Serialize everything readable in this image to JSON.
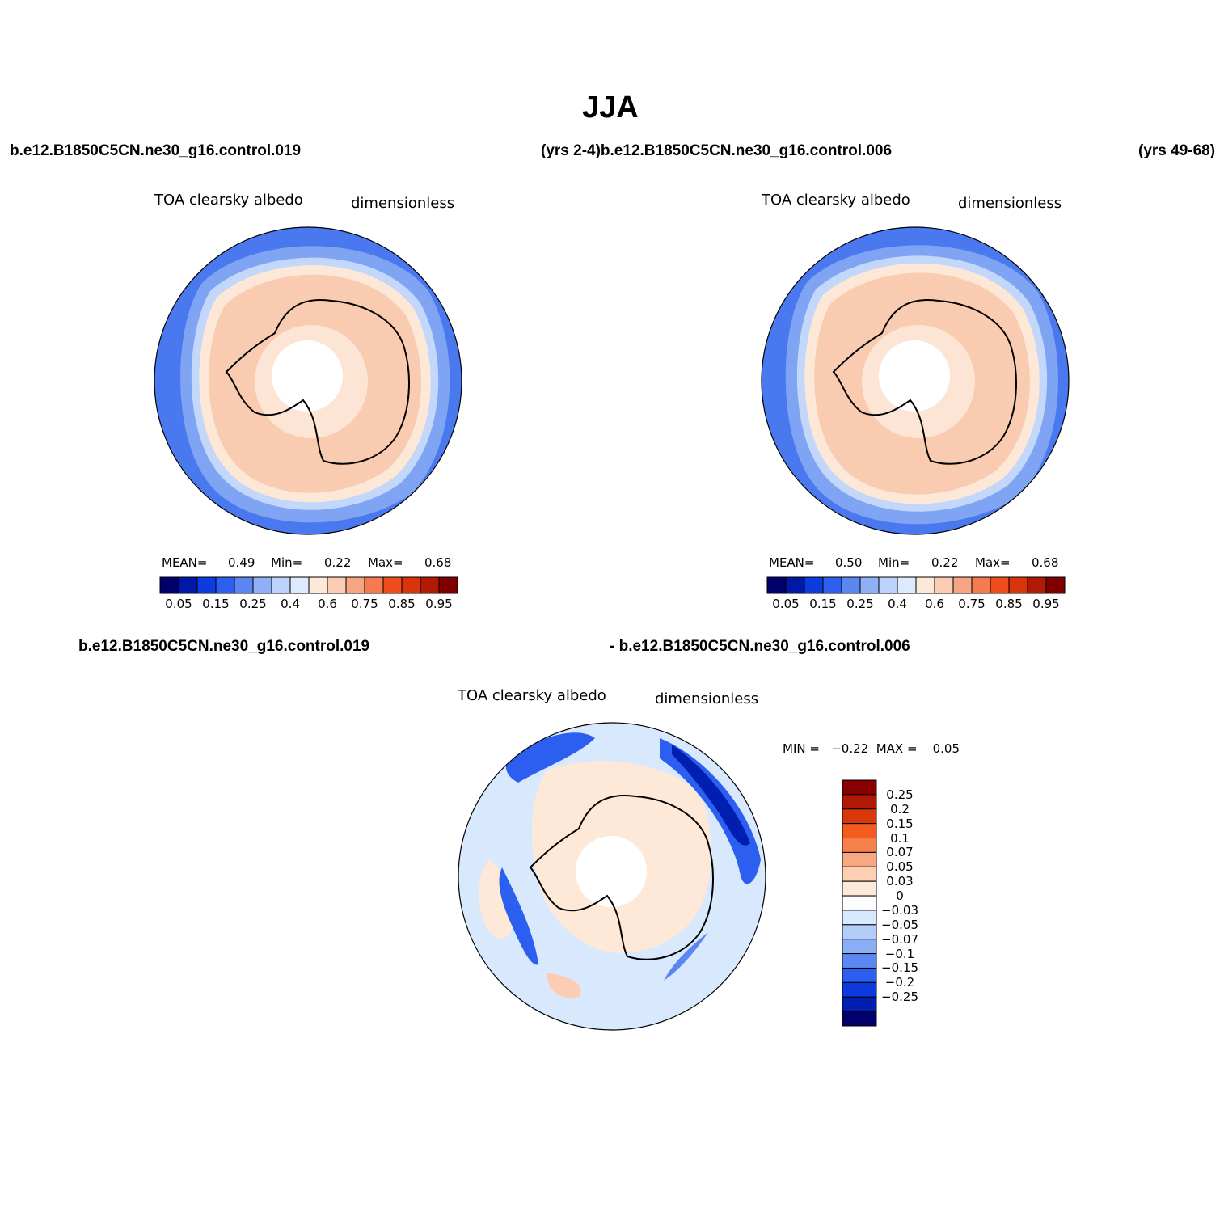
{
  "title": "JJA",
  "headers": {
    "left_top": "b.e12.B1850C5CN.ne30_g16.control.019",
    "mid_top": "(yrs 2-4)b.e12.B1850C5CN.ne30_g16.control.006",
    "right_top": "(yrs 49-68)",
    "left_bottom": "b.e12.B1850C5CN.ne30_g16.control.019",
    "mid_bottom": "- b.e12.B1850C5CN.ne30_g16.control.006"
  },
  "panels": [
    {
      "variable": "TOA clearsky albedo",
      "units": "dimensionless",
      "mean_label": "MEAN=",
      "mean": "0.49",
      "min_label": "Min=",
      "min": "0.22",
      "max_label": "Max=",
      "max": "0.68"
    },
    {
      "variable": "TOA clearsky albedo",
      "units": "dimensionless",
      "mean_label": "MEAN=",
      "mean": "0.50",
      "min_label": "Min=",
      "min": "0.22",
      "max_label": "Max=",
      "max": "0.68"
    },
    {
      "variable": "TOA clearsky albedo",
      "units": "dimensionless",
      "minmax": "MIN =   −0.22  MAX =    0.05"
    }
  ],
  "colorbar_abs": {
    "colors": [
      "#00006b",
      "#0018a8",
      "#0a3ce0",
      "#2d5ef0",
      "#5c87f2",
      "#8fb0f5",
      "#bcd2fa",
      "#dde9fd",
      "#fee9d8",
      "#fcccb4",
      "#f7a482",
      "#f57a50",
      "#f04d1e",
      "#d9350c",
      "#b01a04",
      "#800000"
    ],
    "labels": [
      "0.05",
      "0.15",
      "0.25",
      "0.4",
      "0.6",
      "0.75",
      "0.85",
      "0.95"
    ]
  },
  "colorbar_diff": {
    "colors_top_to_bottom": [
      "#8a0000",
      "#b01a04",
      "#d9380a",
      "#f55a1e",
      "#f5804a",
      "#f7a882",
      "#fdd0b4",
      "#fee9d8",
      "#fdfdfd",
      "#d8e8fd",
      "#b3cdf8",
      "#8aaef5",
      "#5a87f2",
      "#2c5ef0",
      "#0a3ae0",
      "#001eb0",
      "#00006b"
    ],
    "labels": [
      "0.25",
      "0.2",
      "0.15",
      "0.1",
      "0.07",
      "0.05",
      "0.03",
      "0",
      "−0.03",
      "−0.05",
      "−0.07",
      "−0.1",
      "−0.15",
      "−0.2",
      "−0.25"
    ]
  }
}
